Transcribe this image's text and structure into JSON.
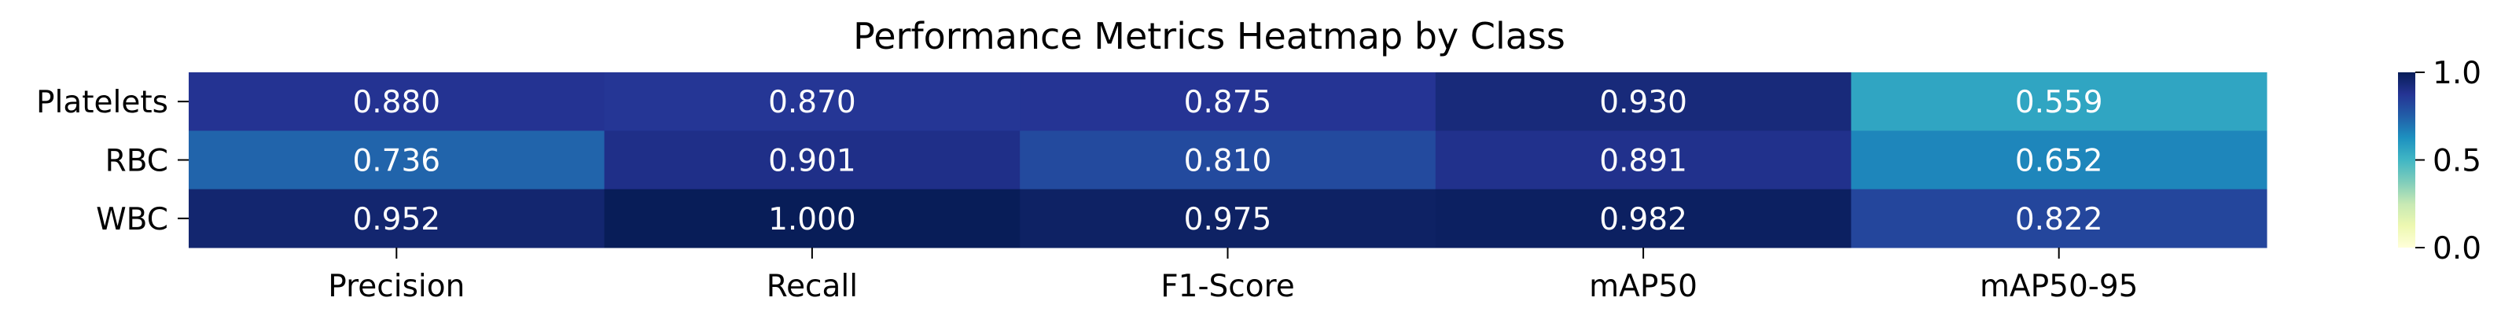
{
  "chart_data": {
    "type": "heatmap",
    "title": "Performance Metrics Heatmap by Class",
    "xlabel": "",
    "ylabel": "",
    "x_categories": [
      "Precision",
      "Recall",
      "F1-Score",
      "mAP50",
      "mAP50-95"
    ],
    "y_categories": [
      "Platelets",
      "RBC",
      "WBC"
    ],
    "values": [
      [
        0.88,
        0.87,
        0.875,
        0.93,
        0.559
      ],
      [
        0.736,
        0.901,
        0.81,
        0.891,
        0.652
      ],
      [
        0.952,
        1.0,
        0.975,
        0.982,
        0.822
      ]
    ],
    "cell_labels": [
      [
        "0.880",
        "0.870",
        "0.875",
        "0.930",
        "0.559"
      ],
      [
        "0.736",
        "0.901",
        "0.810",
        "0.891",
        "0.652"
      ],
      [
        "0.952",
        "1.000",
        "0.975",
        "0.982",
        "0.822"
      ]
    ],
    "colormap": "YlGnBu",
    "value_range": [
      0.0,
      1.0
    ],
    "colorbar": {
      "ticks": [
        0.0,
        0.5,
        1.0
      ],
      "tick_labels": [
        "0.0",
        "0.5",
        "1.0"
      ]
    },
    "grid": false
  }
}
